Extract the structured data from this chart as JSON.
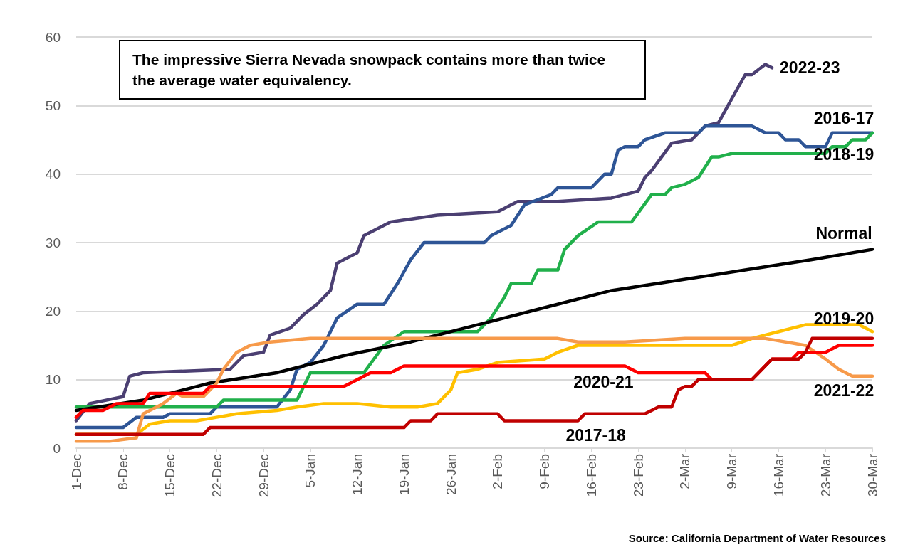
{
  "chart_data": {
    "type": "line",
    "annotations": [
      "The impressive Sierra Nevada snowpack contains more than twice the average water equivalency.",
      "Source: California Department of Water Resources"
    ],
    "xlim": [
      "2022-12-01",
      "2023-03-30"
    ],
    "xticks": [
      {
        "value": "2022-12-01",
        "label": "1-Dec"
      },
      {
        "value": "2022-12-08",
        "label": "8-Dec"
      },
      {
        "value": "2022-12-15",
        "label": "15-Dec"
      },
      {
        "value": "2022-12-22",
        "label": "22-Dec"
      },
      {
        "value": "2022-12-29",
        "label": "29-Dec"
      },
      {
        "value": "2023-01-05",
        "label": "5-Jan"
      },
      {
        "value": "2023-01-12",
        "label": "12-Jan"
      },
      {
        "value": "2023-01-19",
        "label": "19-Jan"
      },
      {
        "value": "2023-01-26",
        "label": "26-Jan"
      },
      {
        "value": "2023-02-02",
        "label": "2-Feb"
      },
      {
        "value": "2023-02-09",
        "label": "9-Feb"
      },
      {
        "value": "2023-02-16",
        "label": "16-Feb"
      },
      {
        "value": "2023-02-23",
        "label": "23-Feb"
      },
      {
        "value": "2023-03-02",
        "label": "2-Mar"
      },
      {
        "value": "2023-03-09",
        "label": "9-Mar"
      },
      {
        "value": "2023-03-16",
        "label": "16-Mar"
      },
      {
        "value": "2023-03-23",
        "label": "23-Mar"
      },
      {
        "value": "2023-03-30",
        "label": "30-Mar"
      }
    ],
    "ylim": [
      0,
      60
    ],
    "yticks": [
      0,
      10,
      20,
      30,
      40,
      50,
      60
    ],
    "grid": "y",
    "marker": "none",
    "line_style": "solid",
    "series": [
      {
        "name": "2022-23",
        "color": "#4b3f72",
        "x": [
          "2022-12-01",
          "2022-12-03",
          "2022-12-08",
          "2022-12-09",
          "2022-12-11",
          "2022-12-24",
          "2022-12-26",
          "2022-12-29",
          "2022-12-30",
          "2023-01-02",
          "2023-01-04",
          "2023-01-06",
          "2023-01-08",
          "2023-01-09",
          "2023-01-11",
          "2023-01-12",
          "2023-01-13",
          "2023-01-17",
          "2023-01-24",
          "2023-02-02",
          "2023-02-05",
          "2023-02-11",
          "2023-02-19",
          "2023-02-21",
          "2023-02-23",
          "2023-02-24",
          "2023-02-25",
          "2023-02-28",
          "2023-03-03",
          "2023-03-05",
          "2023-03-07",
          "2023-03-09",
          "2023-03-11",
          "2023-03-12",
          "2023-03-14",
          "2023-03-15"
        ],
        "values": [
          4,
          6.5,
          7.5,
          10.5,
          11,
          11.5,
          13.5,
          14,
          16.5,
          17.5,
          19.5,
          21,
          23,
          27,
          28,
          28.5,
          31,
          33,
          34,
          34.5,
          36,
          36,
          36.5,
          37,
          37.5,
          39.5,
          40.5,
          44.5,
          45,
          47,
          47.5,
          51,
          54.5,
          54.5,
          56,
          55.5
        ]
      },
      {
        "name": "2016-17",
        "color": "#2e5596",
        "x": [
          "2022-12-01",
          "2022-12-08",
          "2022-12-10",
          "2022-12-14",
          "2022-12-15",
          "2022-12-21",
          "2022-12-22",
          "2022-12-31",
          "2023-01-02",
          "2023-01-03",
          "2023-01-05",
          "2023-01-07",
          "2023-01-09",
          "2023-01-12",
          "2023-01-16",
          "2023-01-18",
          "2023-01-20",
          "2023-01-22",
          "2023-01-31",
          "2023-02-01",
          "2023-02-04",
          "2023-02-06",
          "2023-02-10",
          "2023-02-11",
          "2023-02-16",
          "2023-02-18",
          "2023-02-19",
          "2023-02-20",
          "2023-02-21",
          "2023-02-23",
          "2023-02-24",
          "2023-02-27",
          "2023-03-04",
          "2023-03-05",
          "2023-03-12",
          "2023-03-14",
          "2023-03-16",
          "2023-03-17",
          "2023-03-19",
          "2023-03-20",
          "2023-03-23",
          "2023-03-24",
          "2023-03-30"
        ],
        "values": [
          3,
          3,
          4.5,
          4.5,
          5,
          5,
          6,
          6,
          8.5,
          11.5,
          12.5,
          15,
          19,
          21,
          21,
          24,
          27.5,
          30,
          30,
          31,
          32.5,
          35.5,
          37,
          38,
          38,
          40,
          40,
          43.5,
          44,
          44,
          45,
          46,
          46,
          47,
          47,
          46,
          46,
          45,
          45,
          44,
          44,
          46,
          46
        ]
      },
      {
        "name": "2018-19",
        "color": "#21b04b",
        "x": [
          "2022-12-01",
          "2022-12-22",
          "2022-12-23",
          "2023-01-03",
          "2023-01-05",
          "2023-01-13",
          "2023-01-16",
          "2023-01-19",
          "2023-01-30",
          "2023-02-01",
          "2023-02-03",
          "2023-02-04",
          "2023-02-07",
          "2023-02-08",
          "2023-02-11",
          "2023-02-12",
          "2023-02-14",
          "2023-02-17",
          "2023-02-22",
          "2023-02-25",
          "2023-02-27",
          "2023-02-28",
          "2023-03-02",
          "2023-03-04",
          "2023-03-06",
          "2023-03-07",
          "2023-03-09",
          "2023-03-23",
          "2023-03-24",
          "2023-03-26",
          "2023-03-27",
          "2023-03-29",
          "2023-03-30"
        ],
        "values": [
          6,
          6,
          7,
          7,
          11,
          11,
          15,
          17,
          17,
          19,
          22,
          24,
          24,
          26,
          26,
          29,
          31,
          33,
          33,
          37,
          37,
          38,
          38.5,
          39.5,
          42.5,
          42.5,
          43,
          43,
          44,
          44,
          45,
          45,
          46
        ]
      },
      {
        "name": "Normal",
        "color": "#000000",
        "x": [
          "2022-12-01",
          "2022-12-11",
          "2022-12-21",
          "2022-12-31",
          "2023-01-10",
          "2023-01-20",
          "2023-01-30",
          "2023-02-09",
          "2023-02-19",
          "2023-03-01",
          "2023-03-11",
          "2023-03-21",
          "2023-03-30"
        ],
        "values": [
          5.5,
          7,
          9.5,
          11,
          13.5,
          15.5,
          18,
          20.5,
          23,
          24.5,
          26,
          27.5,
          29
        ]
      },
      {
        "name": "2019-20",
        "color": "#ffc000",
        "x": [
          "2022-12-01",
          "2022-12-10",
          "2022-12-12",
          "2022-12-15",
          "2022-12-19",
          "2022-12-22",
          "2022-12-25",
          "2022-12-31",
          "2023-01-03",
          "2023-01-07",
          "2023-01-12",
          "2023-01-17",
          "2023-01-21",
          "2023-01-24",
          "2023-01-26",
          "2023-01-27",
          "2023-01-30",
          "2023-02-02",
          "2023-02-09",
          "2023-02-11",
          "2023-02-14",
          "2023-02-18",
          "2023-03-02",
          "2023-03-09",
          "2023-03-12",
          "2023-03-16",
          "2023-03-20",
          "2023-03-25",
          "2023-03-28",
          "2023-03-30"
        ],
        "values": [
          2,
          2,
          3.5,
          4,
          4,
          4.5,
          5,
          5.5,
          6,
          6.5,
          6.5,
          6,
          6,
          6.5,
          8.5,
          11,
          11.5,
          12.5,
          13,
          14,
          15,
          15,
          15,
          15,
          16,
          17,
          18,
          18,
          18,
          17
        ]
      },
      {
        "name": "2021-22",
        "color": "#f79a4a",
        "x": [
          "2022-12-01",
          "2022-12-06",
          "2022-12-10",
          "2022-12-11",
          "2022-12-12",
          "2022-12-14",
          "2022-12-16",
          "2022-12-17",
          "2022-12-20",
          "2022-12-22",
          "2022-12-23",
          "2022-12-25",
          "2022-12-27",
          "2022-12-30",
          "2023-01-05",
          "2023-01-12",
          "2023-02-11",
          "2023-02-14",
          "2023-02-21",
          "2023-03-02",
          "2023-03-09",
          "2023-03-14",
          "2023-03-20",
          "2023-03-23",
          "2023-03-25",
          "2023-03-27",
          "2023-03-30"
        ],
        "values": [
          1,
          1,
          1.5,
          5,
          5.5,
          6.5,
          8,
          7.5,
          7.5,
          9.5,
          11.5,
          14,
          15,
          15.5,
          16,
          16,
          16,
          15.5,
          15.5,
          16,
          16,
          16,
          15,
          13,
          11.5,
          10.5,
          10.5
        ]
      },
      {
        "name": "2020-21",
        "color": "#ff0000",
        "x": [
          "2022-12-01",
          "2022-12-02",
          "2022-12-05",
          "2022-12-07",
          "2022-12-11",
          "2022-12-12",
          "2022-12-20",
          "2022-12-21",
          "2023-01-10",
          "2023-01-12",
          "2023-01-14",
          "2023-01-17",
          "2023-01-19",
          "2023-02-21",
          "2023-02-23",
          "2023-03-05",
          "2023-03-06",
          "2023-03-12",
          "2023-03-15",
          "2023-03-18",
          "2023-03-19",
          "2023-03-23",
          "2023-03-25",
          "2023-03-30"
        ],
        "values": [
          4.5,
          5.5,
          5.5,
          6.5,
          6.5,
          8,
          8,
          9,
          9,
          10,
          11,
          11,
          12,
          12,
          11,
          11,
          10,
          10,
          13,
          13,
          14,
          14,
          15,
          15
        ]
      },
      {
        "name": "2017-18",
        "color": "#c00000",
        "x": [
          "2022-12-01",
          "2022-12-20",
          "2022-12-21",
          "2023-01-19",
          "2023-01-20",
          "2023-01-23",
          "2023-01-24",
          "2023-02-02",
          "2023-02-03",
          "2023-02-14",
          "2023-02-15",
          "2023-02-24",
          "2023-02-26",
          "2023-02-28",
          "2023-03-01",
          "2023-03-02",
          "2023-03-03",
          "2023-03-04",
          "2023-03-12",
          "2023-03-15",
          "2023-03-19",
          "2023-03-20",
          "2023-03-21",
          "2023-03-30"
        ],
        "values": [
          2,
          2,
          3,
          3,
          4,
          4,
          5,
          5,
          4,
          4,
          5,
          5,
          6,
          6,
          8.5,
          9,
          9,
          10,
          10,
          13,
          13,
          14,
          16,
          16
        ]
      }
    ]
  }
}
